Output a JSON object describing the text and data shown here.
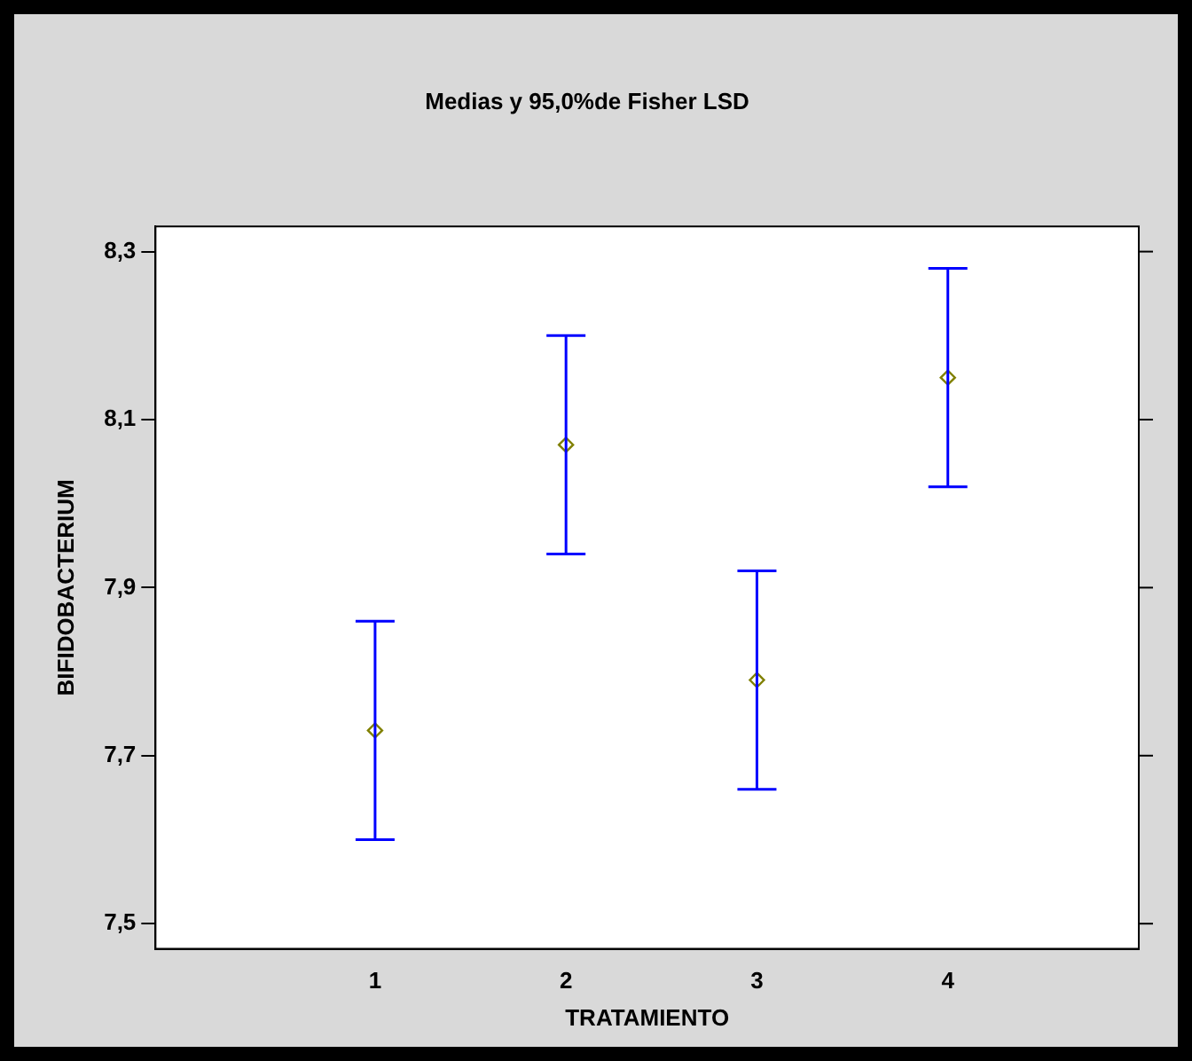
{
  "chart_data": {
    "type": "scatter",
    "title": "Medias y 95,0%de Fisher LSD",
    "xlabel": "TRATAMIENTO",
    "ylabel": "BIFIDOBACTERIUM",
    "x": [
      1,
      2,
      3,
      4
    ],
    "values": [
      7.73,
      8.07,
      7.79,
      8.15
    ],
    "errors": [
      0.13,
      0.13,
      0.13,
      0.13
    ],
    "color": "#808000",
    "marker": "diamond",
    "xlim": [
      -0.15,
      5
    ],
    "xticks": [
      1,
      2,
      3,
      4
    ],
    "ylim": [
      7.47,
      8.33
    ],
    "yticks": [
      {
        "value": 7.5,
        "label": "7,5"
      },
      {
        "value": 7.7,
        "label": "7,7"
      },
      {
        "value": 7.9,
        "label": "7,9"
      },
      {
        "value": 8.1,
        "label": "8,1"
      },
      {
        "value": 8.3,
        "label": "8,3"
      }
    ],
    "grid": false,
    "legend": false
  }
}
